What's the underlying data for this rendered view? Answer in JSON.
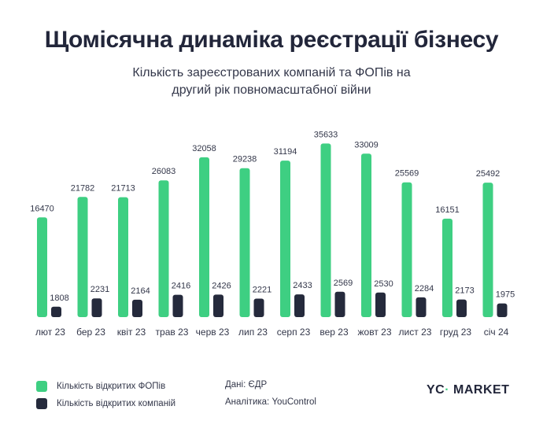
{
  "chart_data": {
    "type": "bar",
    "title": "Щомісячна динаміка реєстрації бізнесу",
    "subtitle_lines": [
      "Кількість зареєстрованих компаній та ФОПів на",
      "другий рік повномасштабної війни"
    ],
    "categories": [
      "лют 23",
      "бер 23",
      "квіт 23",
      "трав 23",
      "черв 23",
      "лип 23",
      "серп 23",
      "вер 23",
      "жовт 23",
      "лист 23",
      "груд 23",
      "січ 24"
    ],
    "series": [
      {
        "name": "Кількість відкритих ФОПів",
        "color": "#3ecf82",
        "values": [
          16470,
          21782,
          21713,
          26083,
          32058,
          29238,
          31194,
          35633,
          33009,
          25569,
          16151,
          25492
        ]
      },
      {
        "name": "Кількість відкритих компаній",
        "color": "#252a3c",
        "values": [
          1808,
          2231,
          2164,
          2416,
          2426,
          2221,
          2433,
          2569,
          2530,
          2284,
          2173,
          1975
        ]
      }
    ],
    "xlabel": "",
    "ylabel": "",
    "grid": false,
    "legend_position": "bottom-left",
    "data_labels": true
  },
  "footer": {
    "source": "Дані: ЄДР",
    "analytics": "Аналітика: YouControl",
    "logo_text": "YC MARKET"
  }
}
